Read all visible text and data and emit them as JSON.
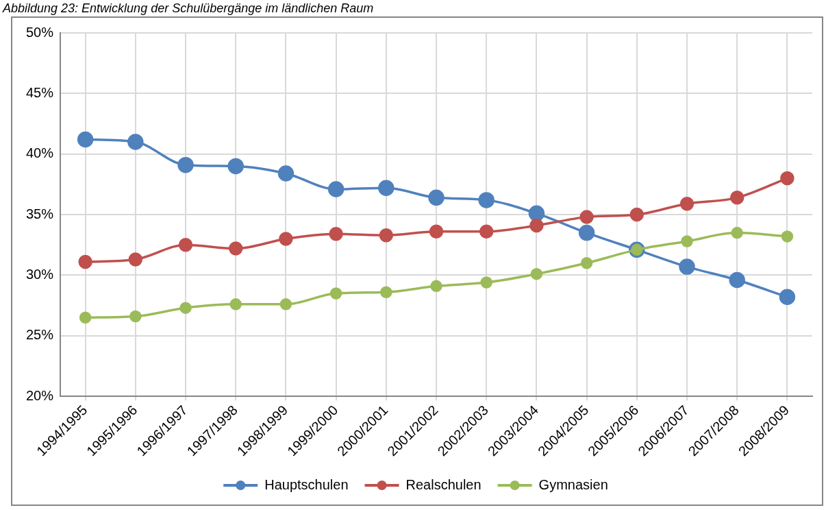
{
  "chart_data": {
    "type": "line",
    "title": "Abbildung 23: Entwicklung der Schulübergänge im ländlichen Raum",
    "categories": [
      "1994/1995",
      "1995/1996",
      "1996/1997",
      "1997/1998",
      "1998/1999",
      "1999/2000",
      "2000/2001",
      "2001/2002",
      "2002/2003",
      "2003/2004",
      "2004/2005",
      "2005/2006",
      "2006/2007",
      "2007/2008",
      "2008/2009"
    ],
    "series": [
      {
        "name": "Hauptschulen",
        "color": "#4f81bd",
        "values": [
          41.2,
          41.0,
          39.1,
          39.0,
          38.4,
          37.1,
          37.2,
          36.4,
          36.2,
          35.1,
          33.5,
          32.1,
          30.7,
          29.6,
          28.2
        ]
      },
      {
        "name": "Realschulen",
        "color": "#c0504d",
        "values": [
          31.1,
          31.3,
          32.5,
          32.2,
          33.0,
          33.4,
          33.3,
          33.6,
          33.6,
          34.1,
          34.8,
          35.0,
          35.9,
          36.4,
          38.0
        ]
      },
      {
        "name": "Gymnasien",
        "color": "#9bbb59",
        "values": [
          26.5,
          26.6,
          27.3,
          27.6,
          27.6,
          28.5,
          28.6,
          29.1,
          29.4,
          30.1,
          31.0,
          32.1,
          32.8,
          33.5,
          33.2
        ]
      }
    ],
    "ylim": [
      20,
      50
    ],
    "yticks": [
      {
        "value": 20,
        "label": "20%"
      },
      {
        "value": 25,
        "label": "25%"
      },
      {
        "value": 30,
        "label": "30%"
      },
      {
        "value": 35,
        "label": "35%"
      },
      {
        "value": 40,
        "label": "40%"
      },
      {
        "value": 45,
        "label": "45%"
      },
      {
        "value": 50,
        "label": "50%"
      }
    ],
    "grid": true,
    "legend": "bottom",
    "marker": "circle",
    "line_style": "solid"
  }
}
